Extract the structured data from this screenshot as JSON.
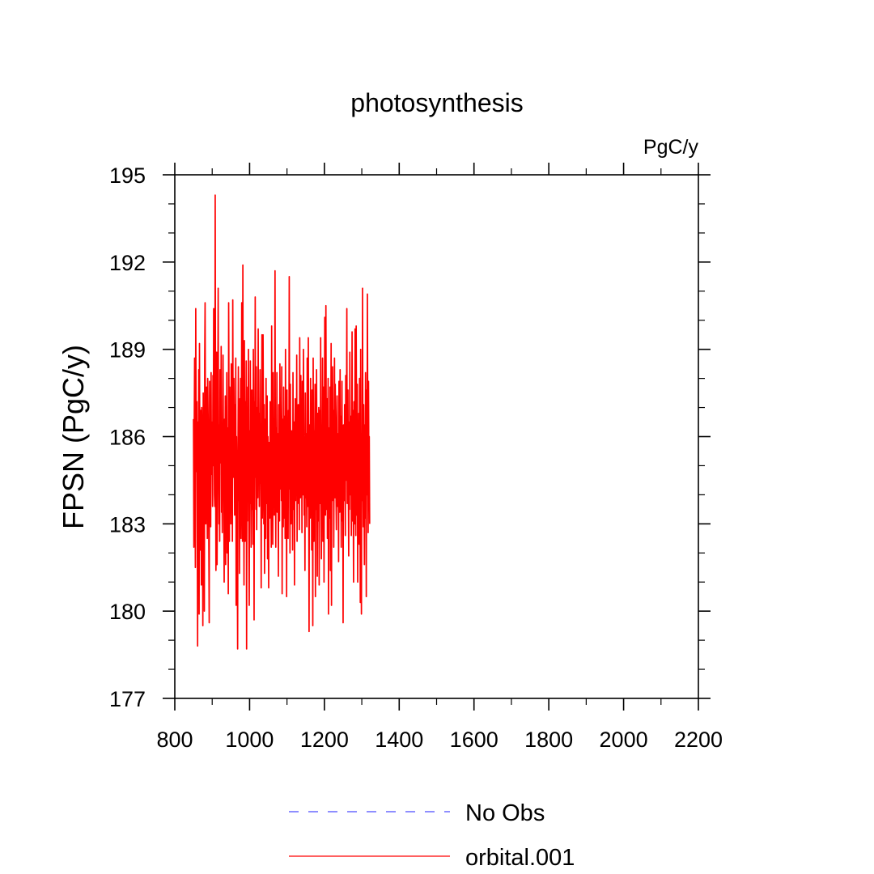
{
  "chart_data": {
    "type": "line",
    "title": "photosynthesis",
    "units_label": "PgC/y",
    "xlabel": "",
    "ylabel": "FPSN  (PgC/y)",
    "xlim": [
      800,
      2200
    ],
    "ylim": [
      177,
      195
    ],
    "x_ticks": [
      800,
      1000,
      1200,
      1400,
      1600,
      1800,
      2000,
      2200
    ],
    "y_ticks": [
      177,
      180,
      183,
      186,
      189,
      192,
      195
    ],
    "grid": false,
    "legend_position": "bottom",
    "series": [
      {
        "name": "No Obs",
        "color": "#4a4aff",
        "style": "dashed",
        "x": [],
        "y": []
      },
      {
        "name": "orbital.001",
        "color": "#ff0000",
        "style": "solid",
        "x_start": 850,
        "x_step": 1,
        "y": [
          186.6,
          182.2,
          186.4,
          188.7,
          185.1,
          181.5,
          190.4,
          186.2,
          184.8,
          187.2,
          183.1,
          178.8,
          186.5,
          184.0,
          188.3,
          179.9,
          189.2,
          184.6,
          182.1,
          186.9,
          185.3,
          180.9,
          187.0,
          185.8,
          183.7,
          179.5,
          187.5,
          184.2,
          186.0,
          180.0,
          188.6,
          190.6,
          185.5,
          183.0,
          186.3,
          187.7,
          184.9,
          182.5,
          188.0,
          186.8,
          185.4,
          182.2,
          179.6,
          187.9,
          185.0,
          186.6,
          182.9,
          188.2,
          184.7,
          185.3,
          186.5,
          183.6,
          188.1,
          185.0,
          190.4,
          187.3,
          184.0,
          183.6,
          194.3,
          186.0,
          181.4,
          185.7,
          188.9,
          181.6,
          184.5,
          187.0,
          191.1,
          185.9,
          183.0,
          186.4,
          182.4,
          188.3,
          186.7,
          185.1,
          189.1,
          183.4,
          184.8,
          182.7,
          186.0,
          188.8,
          185.2,
          183.9,
          181.0,
          186.6,
          184.2,
          187.4,
          181.6,
          185.8,
          183.4,
          188.2,
          182.0,
          186.3,
          184.7,
          180.6,
          190.6,
          186.9,
          182.4,
          187.7,
          184.1,
          185.9,
          183.0,
          188.5,
          184.3,
          186.7,
          182.4,
          190.7,
          185.2,
          184.6,
          188.0,
          186.1,
          183.3,
          187.1,
          185.5,
          188.7,
          180.2,
          186.0,
          184.4,
          182.3,
          178.7,
          185.6,
          188.4,
          183.8,
          186.9,
          181.3,
          187.3,
          184.9,
          188.0,
          182.5,
          185.0,
          190.6,
          186.3,
          182.4,
          191.9,
          184.0,
          186.5,
          180.9,
          189.3,
          185.8,
          182.4,
          187.2,
          184.1,
          188.6,
          178.7,
          186.1,
          183.1,
          187.7,
          185.4,
          189.0,
          182.8,
          180.2,
          186.2,
          183.7,
          188.6,
          185.2,
          182.2,
          184.6,
          187.6,
          183.5,
          186.7,
          182.3,
          189.0,
          185.8,
          179.7,
          187.2,
          184.6,
          190.8,
          186.1,
          183.5,
          188.4,
          182.8,
          185.4,
          187.0,
          183.9,
          189.7,
          185.1,
          186.8,
          183.6,
          185.0,
          188.3,
          184.4,
          186.2,
          180.8,
          185.8,
          189.5,
          183.2,
          184.9,
          189.5,
          186.4,
          183.0,
          187.1,
          181.3,
          184.2,
          186.6,
          182.5,
          188.0,
          183.7,
          185.5,
          187.4,
          181.8,
          186.0,
          184.4,
          180.8,
          185.8,
          184.6,
          183.2,
          187.2,
          186.0,
          184.4,
          182.2,
          189.8,
          185.1,
          186.7,
          182.3,
          188.2,
          184.8,
          186.2,
          183.3,
          185.6,
          191.7,
          184.6,
          182.2,
          186.3,
          184.0,
          188.2,
          183.4,
          186.1,
          184.9,
          181.2,
          187.1,
          184.0,
          183.1,
          188.5,
          186.6,
          184.2,
          185.5,
          183.8,
          188.4,
          180.6,
          186.6,
          184.8,
          182.9,
          187.7,
          183.2,
          185.0,
          186.7,
          182.5,
          189.0,
          184.5,
          186.2,
          180.5,
          187.6,
          183.7,
          185.4,
          182.5,
          186.9,
          184.2,
          191.5,
          185.6,
          182.0,
          187.8,
          184.7,
          183.0,
          186.2,
          184.5,
          185.8,
          182.1,
          188.2,
          184.9,
          183.5,
          186.5,
          180.9,
          185.2,
          187.3,
          183.8,
          186.8,
          184.0,
          188.8,
          182.4,
          186.4,
          184.6,
          187.1,
          183.7,
          185.9,
          182.8,
          189.4,
          185.3,
          183.9,
          188.1,
          184.1,
          186.8,
          182.7,
          187.9,
          185.2,
          184.0,
          189.0,
          186.3,
          183.3,
          185.7,
          181.4,
          187.5,
          183.9,
          186.1,
          184.5,
          182.9,
          188.7,
          185.4,
          183.6,
          189.4,
          184.8,
          179.3,
          186.4,
          185.1,
          183.2,
          188.0,
          184.2,
          186.6,
          182.1,
          187.6,
          185.0,
          179.5,
          188.7,
          184.6,
          182.4,
          186.2,
          184.9,
          187.8,
          180.5,
          186.9,
          183.5,
          188.3,
          185.3,
          181.2,
          186.8,
          184.3,
          183.1,
          187.0,
          180.9,
          185.6,
          186.9,
          183.7,
          189.4,
          184.7,
          181.8,
          186.3,
          185.2,
          188.7,
          182.4,
          184.8,
          187.7,
          181.0,
          186.0,
          190.1,
          185.4,
          183.3,
          190.5,
          186.0,
          183.5,
          187.3,
          182.5,
          184.9,
          188.0,
          179.9,
          185.5,
          186.3,
          183.2,
          187.7,
          181.4,
          185.6,
          189.2,
          180.2,
          186.6,
          183.8,
          188.4,
          184.2,
          186.9,
          182.2,
          185.3,
          188.7,
          183.9,
          187.8,
          186.4,
          184.1,
          182.8,
          185.9,
          187.4,
          183.6,
          186.1,
          184.8,
          181.7,
          187.9,
          185.0,
          183.4,
          188.3,
          184.6,
          186.7,
          182.2,
          185.4,
          187.9,
          183.1,
          185.8,
          179.6,
          186.4,
          184.9,
          183.8,
          187.1,
          185.2,
          182.6,
          188.1,
          184.5,
          186.0,
          190.4,
          183.7,
          185.9,
          187.6,
          184.2,
          181.9,
          186.5,
          183.5,
          188.9,
          185.0,
          184.0,
          186.7,
          182.6,
          185.3,
          189.6,
          183.1,
          186.9,
          184.4,
          181.0,
          187.2,
          185.6,
          183.0,
          189.7,
          184.6,
          182.6,
          189.8,
          186.2,
          183.3,
          187.8,
          181.0,
          185.8,
          184.5,
          186.8,
          182.3,
          188.0,
          185.1,
          180.3,
          189.0,
          184.2,
          179.9,
          186.1,
          183.8,
          191.1,
          185.4,
          182.9,
          187.1,
          184.6,
          181.6,
          186.4,
          183.2,
          188.2,
          185.7,
          180.5,
          187.6,
          184.0,
          190.9,
          186.0,
          182.7,
          187.9,
          184.8,
          186.0,
          183.0
        ]
      }
    ]
  }
}
